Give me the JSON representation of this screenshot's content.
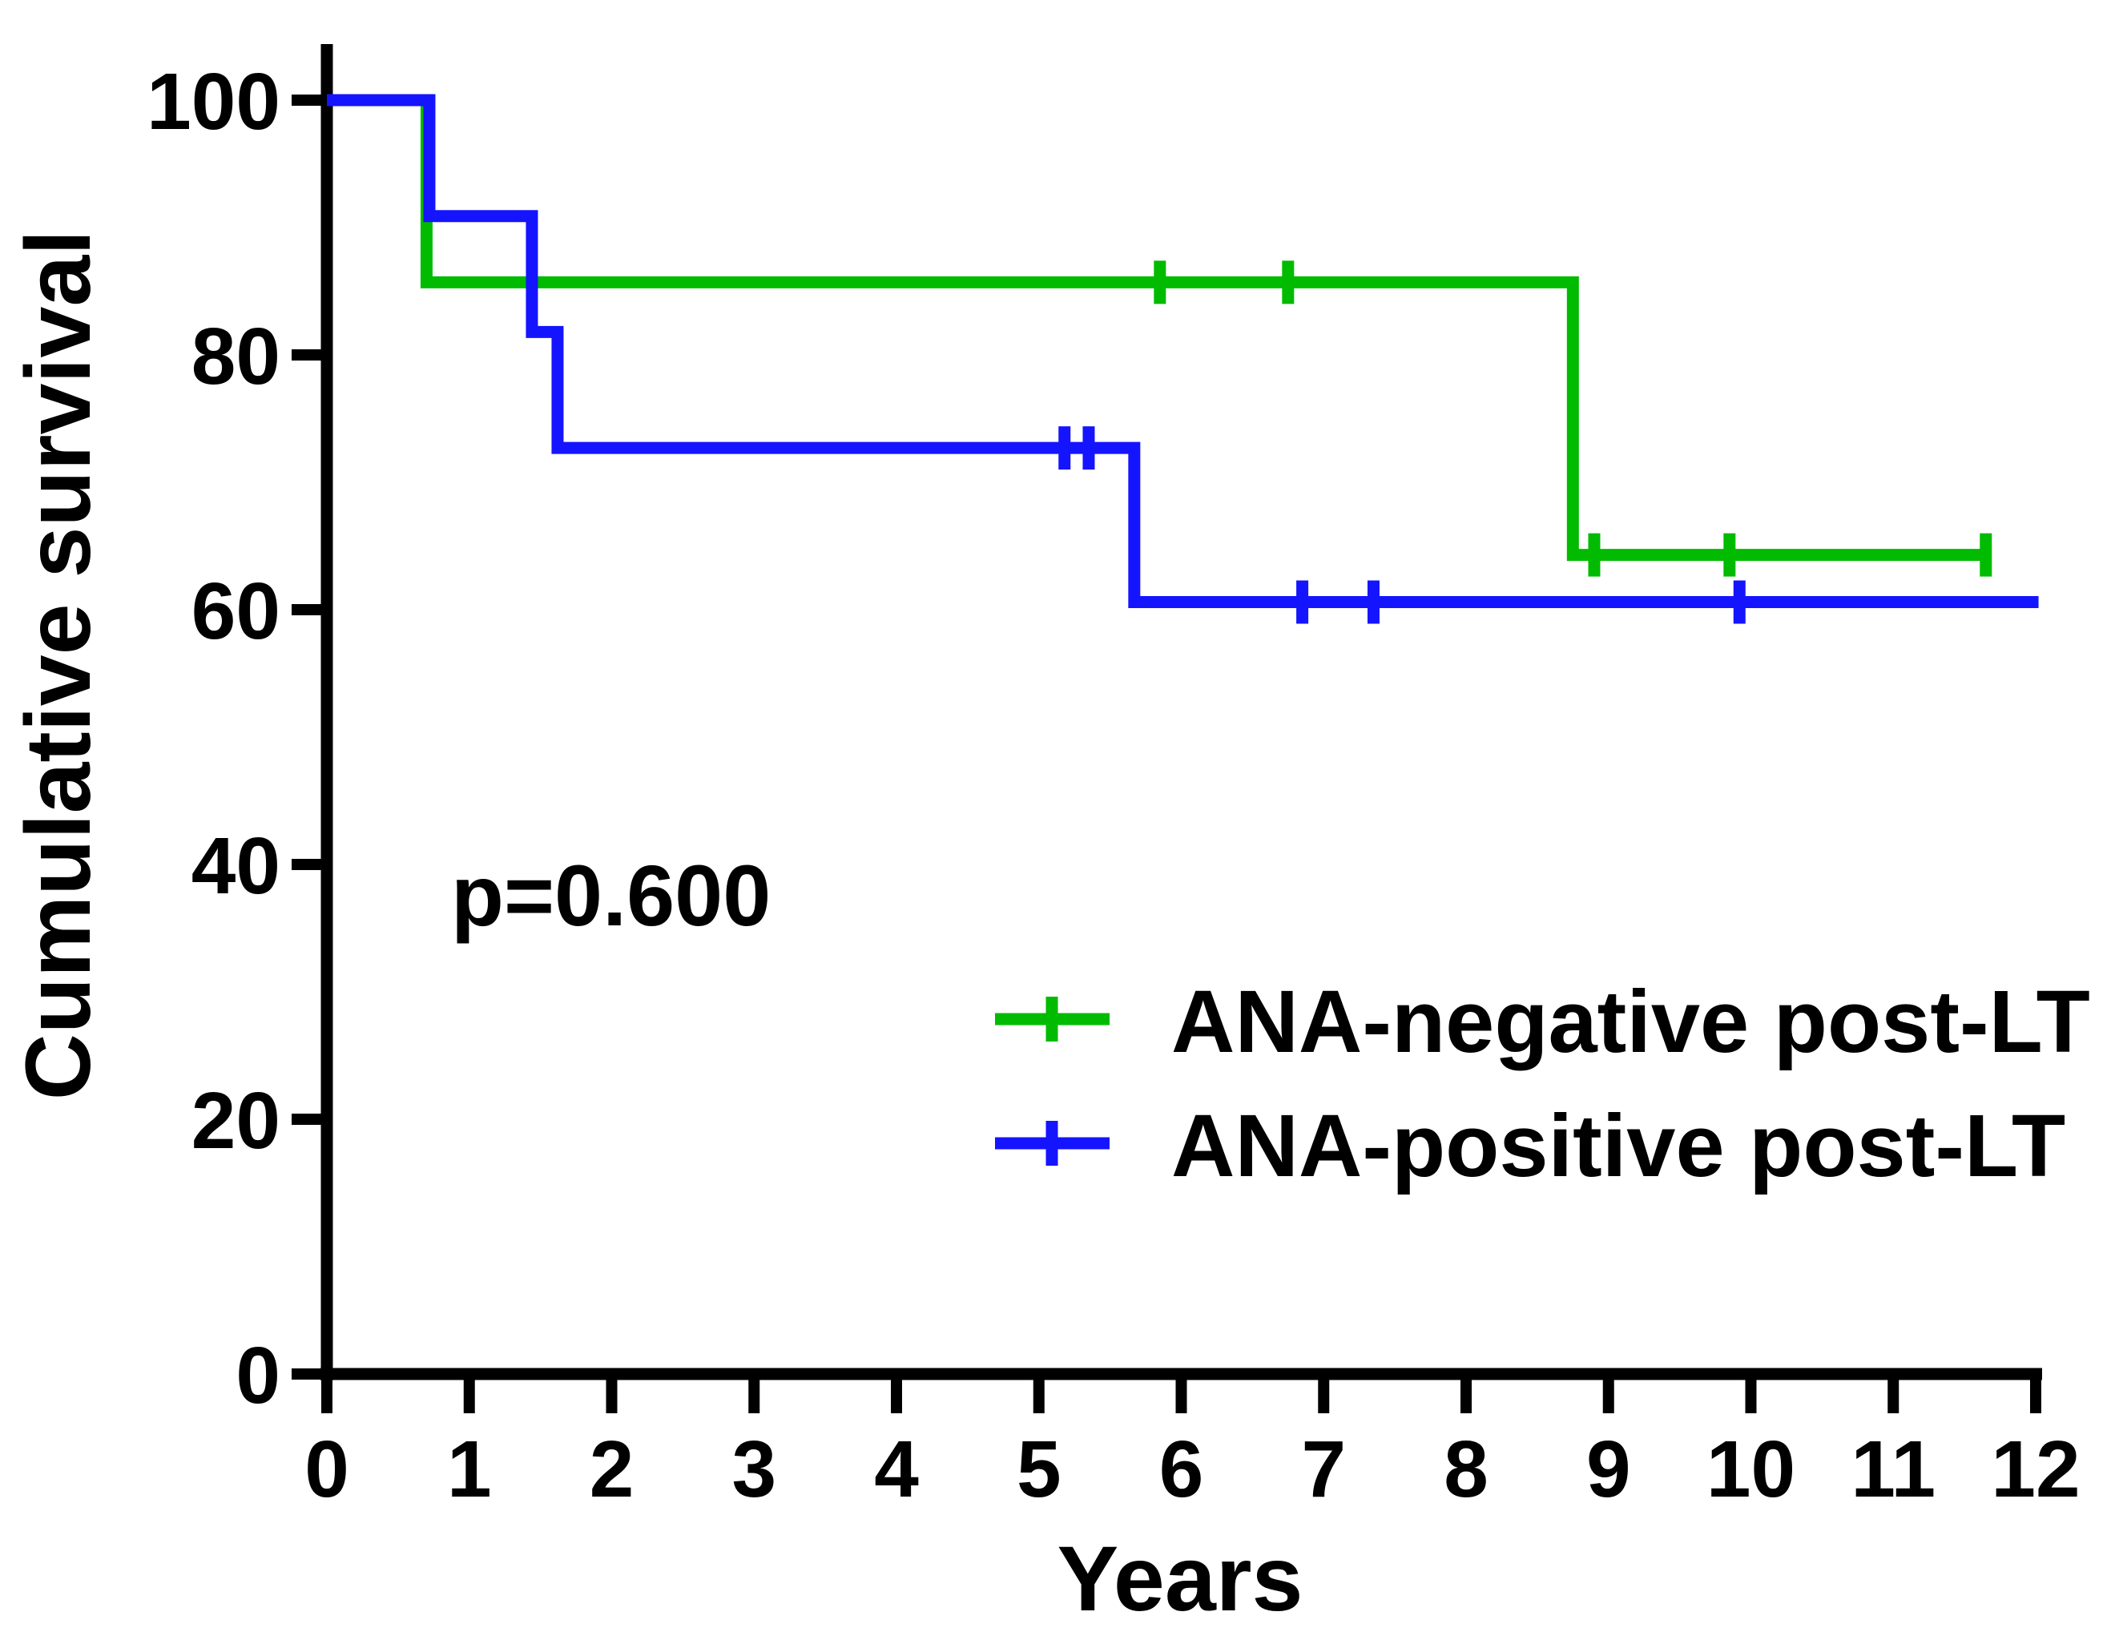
{
  "chart_data": {
    "type": "line",
    "subtype": "kaplan-meier-step",
    "title": "",
    "xlabel": "Years",
    "ylabel": "Cumulative survival",
    "annotation": "p=0.600",
    "xlim": [
      0,
      12
    ],
    "ylim": [
      0,
      100
    ],
    "xticks": [
      0,
      1,
      2,
      3,
      4,
      5,
      6,
      7,
      8,
      9,
      10,
      11,
      12
    ],
    "yticks": [
      0,
      20,
      40,
      60,
      80,
      100
    ],
    "grid": false,
    "legend_position": "inside-bottom-right",
    "axis_color": "#000000",
    "background_color": "#FFFFFF",
    "series": [
      {
        "name": "ANA-negative post-LT",
        "color": "#00BB00",
        "steps": [
          [
            0,
            100
          ],
          [
            0.7,
            100
          ],
          [
            0.7,
            85.7
          ],
          [
            8.75,
            85.7
          ],
          [
            8.75,
            64.3
          ],
          [
            11.65,
            64.3
          ]
        ],
        "censors": [
          [
            5.85,
            85.7
          ],
          [
            6.75,
            85.7
          ],
          [
            8.9,
            64.3
          ],
          [
            9.85,
            64.3
          ],
          [
            11.65,
            64.3
          ]
        ]
      },
      {
        "name": "ANA-positive post-LT",
        "color": "#1414FF",
        "steps": [
          [
            0,
            100
          ],
          [
            0.72,
            100
          ],
          [
            0.72,
            90.9
          ],
          [
            1.44,
            90.9
          ],
          [
            1.44,
            81.8
          ],
          [
            1.62,
            81.8
          ],
          [
            1.62,
            72.7
          ],
          [
            5.67,
            72.7
          ],
          [
            5.67,
            60.6
          ],
          [
            12.02,
            60.6
          ]
        ],
        "censors": [
          [
            5.18,
            72.7
          ],
          [
            5.35,
            72.7
          ],
          [
            6.85,
            60.6
          ],
          [
            7.35,
            60.6
          ],
          [
            9.92,
            60.6
          ]
        ]
      }
    ]
  }
}
